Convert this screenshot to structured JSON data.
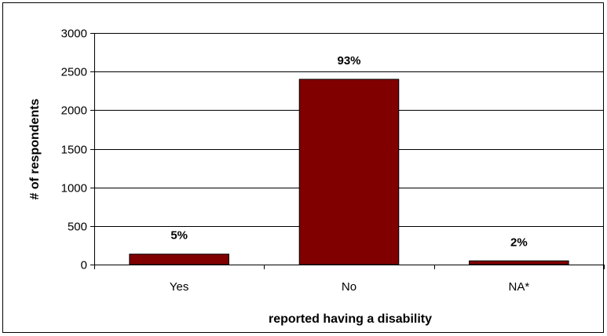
{
  "chart_data": {
    "type": "bar",
    "title": "",
    "xlabel": "reported having a disability",
    "ylabel": "# of respondents",
    "categories": [
      "Yes",
      "No",
      "NA*"
    ],
    "values": [
      135,
      2400,
      48
    ],
    "data_labels": [
      "5%",
      "93%",
      "2%"
    ],
    "ylim": [
      0,
      3000
    ],
    "yticks": [
      "0",
      "500",
      "1000",
      "1500",
      "2000",
      "2500",
      "3000"
    ],
    "grid": "horizontal",
    "legend": "none",
    "colors": {
      "bar": "#800000",
      "bar_border": "#000000",
      "gridline": "#000000"
    }
  }
}
